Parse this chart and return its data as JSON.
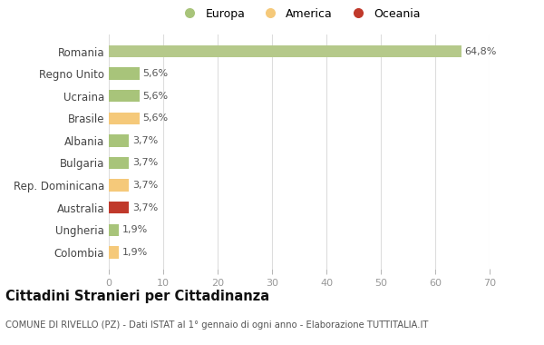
{
  "categories": [
    "Colombia",
    "Ungheria",
    "Australia",
    "Rep. Dominicana",
    "Bulgaria",
    "Albania",
    "Brasile",
    "Ucraina",
    "Regno Unito",
    "Romania"
  ],
  "values": [
    1.9,
    1.9,
    3.7,
    3.7,
    3.7,
    3.7,
    5.6,
    5.6,
    5.6,
    64.8
  ],
  "labels": [
    "1,9%",
    "1,9%",
    "3,7%",
    "3,7%",
    "3,7%",
    "3,7%",
    "5,6%",
    "5,6%",
    "5,6%",
    "64,8%"
  ],
  "colors": [
    "#f5c97a",
    "#a8c47a",
    "#c0392b",
    "#f5c97a",
    "#a8c47a",
    "#a8c47a",
    "#f5c97a",
    "#a8c47a",
    "#a8c47a",
    "#b5c98a"
  ],
  "legend_labels": [
    "Europa",
    "America",
    "Oceania"
  ],
  "legend_colors": [
    "#a8c47a",
    "#f5c97a",
    "#c0392b"
  ],
  "title": "Cittadini Stranieri per Cittadinanza",
  "subtitle": "COMUNE DI RIVELLO (PZ) - Dati ISTAT al 1° gennaio di ogni anno - Elaborazione TUTTITALIA.IT",
  "xlim": [
    0,
    70
  ],
  "xticks": [
    0,
    10,
    20,
    30,
    40,
    50,
    60,
    70
  ],
  "background_color": "#ffffff",
  "grid_color": "#dddddd"
}
